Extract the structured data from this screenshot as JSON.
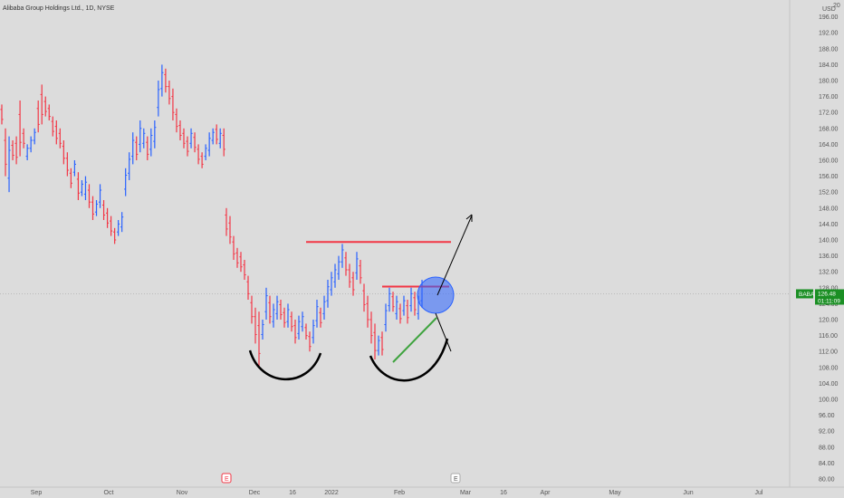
{
  "header": {
    "title": "Alibaba Group Holdings Ltd., 1D, NYSE"
  },
  "price_scale": {
    "corner_label": "20",
    "currency": "USD"
  },
  "price_badge": {
    "symbol": "BABA",
    "price": "126.48",
    "countdown": "01:11:09"
  },
  "earnings_marker": "E",
  "colors": {
    "background": "#dcdcdc",
    "up_bar": "#2962ff",
    "down_bar": "#f23645",
    "resistance_line": "#f23645",
    "support_line": "#3ea33e",
    "badge": "#1b8f24",
    "target_circle": "#2962ff",
    "drawing": "#000000"
  },
  "chart_data": {
    "type": "ohlc",
    "title": "Alibaba Group Holdings Ltd., 1D, NYSE",
    "ylim": [
      80,
      200
    ],
    "y_ticks": [
      "196.00",
      "192.00",
      "188.00",
      "184.00",
      "180.00",
      "176.00",
      "172.00",
      "168.00",
      "164.00",
      "160.00",
      "156.00",
      "152.00",
      "148.00",
      "144.00",
      "140.00",
      "136.00",
      "132.00",
      "128.00",
      "124.00",
      "120.00",
      "116.00",
      "112.00",
      "108.00",
      "104.00",
      "100.00",
      "96.00",
      "92.00",
      "88.00",
      "84.00",
      "80.00"
    ],
    "x_ticks": [
      "Sep",
      "Oct",
      "Nov",
      "Dec",
      "16",
      "2022",
      "Feb",
      "Mar",
      "16",
      "Apr",
      "May",
      "Jun",
      "Jul"
    ],
    "last_price": 126.48,
    "drawn_levels": {
      "neckline": 139.5,
      "inner_resistance": 128.3
    },
    "bars": [
      {
        "h": 174,
        "l": 169,
        "d": -1
      },
      {
        "h": 168,
        "l": 156,
        "d": -1
      },
      {
        "h": 166,
        "l": 152,
        "d": 1
      },
      {
        "h": 165,
        "l": 160,
        "d": -1
      },
      {
        "h": 166,
        "l": 159,
        "d": -1
      },
      {
        "h": 175,
        "l": 161,
        "d": -1
      },
      {
        "h": 168,
        "l": 163,
        "d": -1
      },
      {
        "h": 164,
        "l": 160,
        "d": 1
      },
      {
        "h": 166,
        "l": 162,
        "d": 1
      },
      {
        "h": 168,
        "l": 164,
        "d": 1
      },
      {
        "h": 175,
        "l": 167,
        "d": -1
      },
      {
        "h": 179,
        "l": 169,
        "d": -1
      },
      {
        "h": 176,
        "l": 171,
        "d": -1
      },
      {
        "h": 174,
        "l": 170,
        "d": -1
      },
      {
        "h": 171,
        "l": 166,
        "d": -1
      },
      {
        "h": 170,
        "l": 164,
        "d": -1
      },
      {
        "h": 168,
        "l": 163,
        "d": -1
      },
      {
        "h": 165,
        "l": 159,
        "d": -1
      },
      {
        "h": 162,
        "l": 156,
        "d": -1
      },
      {
        "h": 158,
        "l": 153,
        "d": -1
      },
      {
        "h": 160,
        "l": 156,
        "d": 1
      },
      {
        "h": 157,
        "l": 150,
        "d": -1
      },
      {
        "h": 155,
        "l": 151,
        "d": 1
      },
      {
        "h": 156,
        "l": 150,
        "d": 1
      },
      {
        "h": 154,
        "l": 148,
        "d": -1
      },
      {
        "h": 151,
        "l": 145,
        "d": -1
      },
      {
        "h": 150,
        "l": 146,
        "d": 1
      },
      {
        "h": 154,
        "l": 148,
        "d": 1
      },
      {
        "h": 150,
        "l": 145,
        "d": -1
      },
      {
        "h": 148,
        "l": 143,
        "d": -1
      },
      {
        "h": 146,
        "l": 141,
        "d": -1
      },
      {
        "h": 143,
        "l": 139,
        "d": -1
      },
      {
        "h": 145,
        "l": 141,
        "d": 1
      },
      {
        "h": 147,
        "l": 142,
        "d": 1
      },
      {
        "h": 158,
        "l": 151,
        "d": 1
      },
      {
        "h": 162,
        "l": 155,
        "d": 1
      },
      {
        "h": 167,
        "l": 159,
        "d": 1
      },
      {
        "h": 166,
        "l": 160,
        "d": -1
      },
      {
        "h": 170,
        "l": 162,
        "d": 1
      },
      {
        "h": 168,
        "l": 163,
        "d": 1
      },
      {
        "h": 166,
        "l": 160,
        "d": -1
      },
      {
        "h": 168,
        "l": 161,
        "d": 1
      },
      {
        "h": 170,
        "l": 163,
        "d": 1
      },
      {
        "h": 180,
        "l": 171,
        "d": 1
      },
      {
        "h": 184,
        "l": 176,
        "d": 1
      },
      {
        "h": 183,
        "l": 177,
        "d": -1
      },
      {
        "h": 180,
        "l": 174,
        "d": -1
      },
      {
        "h": 178,
        "l": 170,
        "d": -1
      },
      {
        "h": 173,
        "l": 167,
        "d": -1
      },
      {
        "h": 170,
        "l": 165,
        "d": -1
      },
      {
        "h": 168,
        "l": 163,
        "d": -1
      },
      {
        "h": 166,
        "l": 161,
        "d": -1
      },
      {
        "h": 168,
        "l": 163,
        "d": 1
      },
      {
        "h": 167,
        "l": 162,
        "d": -1
      },
      {
        "h": 164,
        "l": 159,
        "d": -1
      },
      {
        "h": 162,
        "l": 158,
        "d": -1
      },
      {
        "h": 164,
        "l": 160,
        "d": 1
      },
      {
        "h": 167,
        "l": 161,
        "d": 1
      },
      {
        "h": 168,
        "l": 164,
        "d": 1
      },
      {
        "h": 169,
        "l": 164,
        "d": -1
      },
      {
        "h": 168,
        "l": 163,
        "d": 1
      },
      {
        "h": 168,
        "l": 161,
        "d": -1
      },
      {
        "h": 148,
        "l": 141,
        "d": -1
      },
      {
        "h": 146,
        "l": 139,
        "d": -1
      },
      {
        "h": 141,
        "l": 135,
        "d": -1
      },
      {
        "h": 138,
        "l": 133,
        "d": -1
      },
      {
        "h": 137,
        "l": 132,
        "d": -1
      },
      {
        "h": 135,
        "l": 130,
        "d": -1
      },
      {
        "h": 131,
        "l": 125,
        "d": -1
      },
      {
        "h": 126,
        "l": 119,
        "d": -1
      },
      {
        "h": 123,
        "l": 114,
        "d": -1
      },
      {
        "h": 122,
        "l": 108,
        "d": -1
      },
      {
        "h": 120,
        "l": 115,
        "d": 1
      },
      {
        "h": 128,
        "l": 120,
        "d": 1
      },
      {
        "h": 126,
        "l": 119,
        "d": -1
      },
      {
        "h": 124,
        "l": 118,
        "d": 1
      },
      {
        "h": 126,
        "l": 120,
        "d": 1
      },
      {
        "h": 125,
        "l": 120,
        "d": -1
      },
      {
        "h": 123,
        "l": 118,
        "d": -1
      },
      {
        "h": 124,
        "l": 118,
        "d": 1
      },
      {
        "h": 122,
        "l": 117,
        "d": -1
      },
      {
        "h": 120,
        "l": 114,
        "d": -1
      },
      {
        "h": 121,
        "l": 115,
        "d": 1
      },
      {
        "h": 122,
        "l": 117,
        "d": 1
      },
      {
        "h": 119,
        "l": 115,
        "d": -1
      },
      {
        "h": 117,
        "l": 112,
        "d": -1
      },
      {
        "h": 120,
        "l": 114,
        "d": 1
      },
      {
        "h": 125,
        "l": 118,
        "d": 1
      },
      {
        "h": 123,
        "l": 118,
        "d": -1
      },
      {
        "h": 126,
        "l": 120,
        "d": 1
      },
      {
        "h": 130,
        "l": 123,
        "d": 1
      },
      {
        "h": 132,
        "l": 126,
        "d": 1
      },
      {
        "h": 134,
        "l": 128,
        "d": 1
      },
      {
        "h": 136,
        "l": 130,
        "d": 1
      },
      {
        "h": 139,
        "l": 133,
        "d": 1
      },
      {
        "h": 137,
        "l": 131,
        "d": -1
      },
      {
        "h": 134,
        "l": 128,
        "d": -1
      },
      {
        "h": 132,
        "l": 126,
        "d": -1
      },
      {
        "h": 137,
        "l": 130,
        "d": 1
      },
      {
        "h": 135,
        "l": 129,
        "d": -1
      },
      {
        "h": 129,
        "l": 122,
        "d": -1
      },
      {
        "h": 126,
        "l": 118,
        "d": -1
      },
      {
        "h": 122,
        "l": 114,
        "d": -1
      },
      {
        "h": 119,
        "l": 110,
        "d": -1
      },
      {
        "h": 116,
        "l": 111,
        "d": 1
      },
      {
        "h": 117,
        "l": 111,
        "d": -1
      },
      {
        "h": 124,
        "l": 117,
        "d": 1
      },
      {
        "h": 128,
        "l": 122,
        "d": 1
      },
      {
        "h": 127,
        "l": 122,
        "d": -1
      },
      {
        "h": 126,
        "l": 120,
        "d": 1
      },
      {
        "h": 124,
        "l": 119,
        "d": -1
      },
      {
        "h": 126,
        "l": 121,
        "d": 1
      },
      {
        "h": 125,
        "l": 119,
        "d": -1
      },
      {
        "h": 128,
        "l": 122,
        "d": 1
      },
      {
        "h": 127,
        "l": 121,
        "d": -1
      },
      {
        "h": 126,
        "l": 120,
        "d": 1
      },
      {
        "h": 130,
        "l": 123,
        "d": 1
      }
    ]
  }
}
